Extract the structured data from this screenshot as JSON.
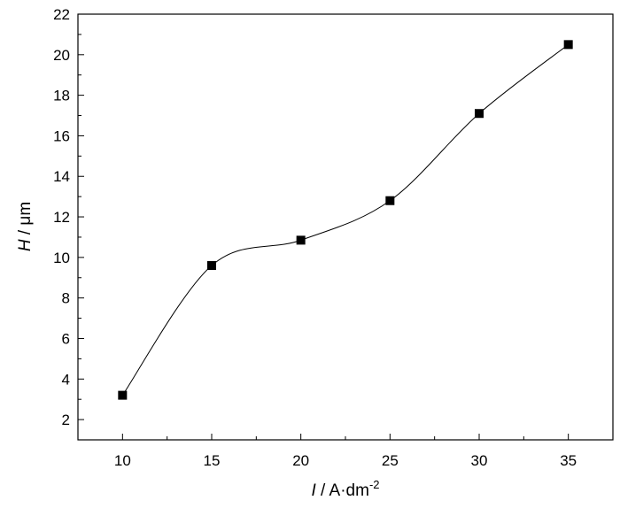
{
  "chart_data": {
    "type": "scatter",
    "title": "",
    "xlabel": {
      "italic": "I",
      "unit": " / A·dm",
      "superscript": "-2"
    },
    "ylabel": {
      "italic": "H",
      "unit": " / μm"
    },
    "xlim": [
      7.5,
      37.5
    ],
    "ylim": [
      1,
      22
    ],
    "x_ticks": [
      10,
      15,
      20,
      25,
      30,
      35
    ],
    "y_ticks": [
      2,
      4,
      6,
      8,
      10,
      12,
      14,
      16,
      18,
      20,
      22
    ],
    "series": [
      {
        "marker": "square",
        "fit_line": "smooth",
        "x": [
          10,
          15,
          20,
          25,
          30,
          35
        ],
        "y": [
          3.2,
          9.6,
          10.85,
          12.8,
          17.1,
          20.5
        ]
      }
    ],
    "grid": false,
    "legend": "none"
  }
}
